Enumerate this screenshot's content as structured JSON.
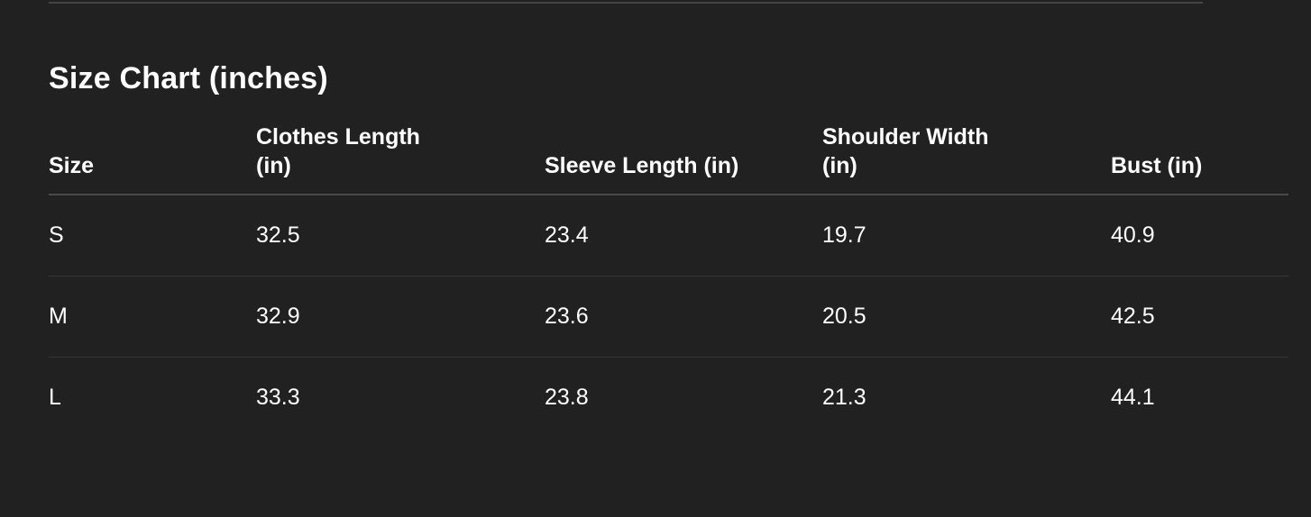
{
  "title": "Size Chart (inches)",
  "table": {
    "headers": [
      "Size",
      "Clothes Length (in)",
      "Sleeve Length (in)",
      "Shoulder Width (in)",
      "Bust (in)"
    ],
    "rows": [
      [
        "S",
        "32.5",
        "23.4",
        "19.7",
        "40.9"
      ],
      [
        "M",
        "32.9",
        "23.6",
        "20.5",
        "42.5"
      ],
      [
        "L",
        "33.3",
        "23.8",
        "21.3",
        "44.1"
      ]
    ]
  }
}
